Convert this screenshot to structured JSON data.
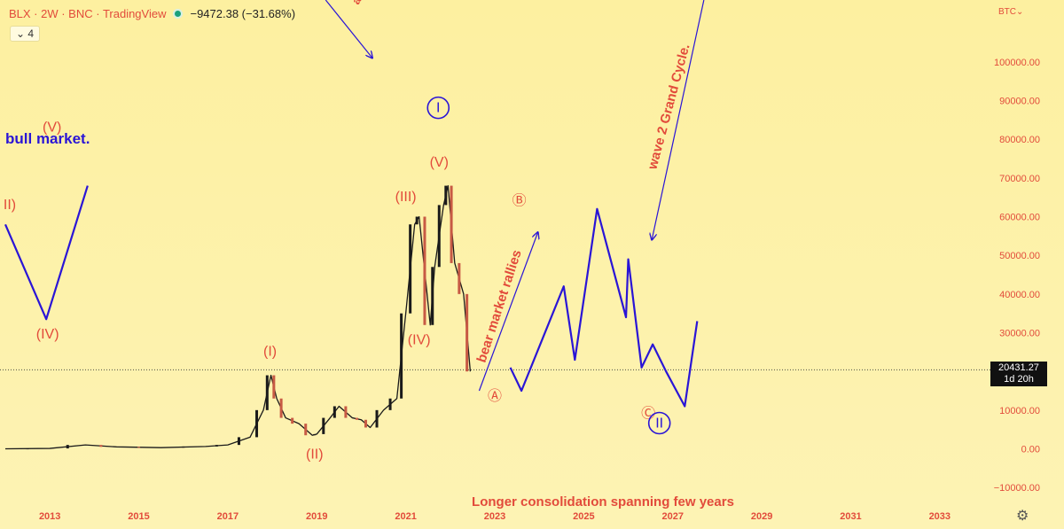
{
  "header": {
    "symbol_line": "BLX · 2W · BNC · TradingView",
    "change": "−9472.38 (−31.68%)",
    "status_color": "#1aa17b"
  },
  "interval_chip": {
    "icon": "chevron-down-icon",
    "label": "4"
  },
  "currency": "BTC",
  "settings_icon": "gear-icon",
  "last_price": {
    "value": "20431.27",
    "countdown": "1d 20h"
  },
  "colors": {
    "accent": "#e24b3b",
    "wave": "#2a15d6",
    "candle_up": "#1a1a1a",
    "candle_down": "#c75a44"
  },
  "chart_data": {
    "type": "line",
    "title": "",
    "xlabel": "",
    "ylabel": "",
    "xlim": [
      2012.0,
      2034.0
    ],
    "ylim": [
      -15000,
      116000
    ],
    "grid": false,
    "y_ticks": [
      "100000.00",
      "90000.00",
      "80000.00",
      "70000.00",
      "60000.00",
      "50000.00",
      "40000.00",
      "30000.00",
      "20000.00",
      "10000.00",
      "0.00",
      "−10000.00"
    ],
    "y_tick_values": [
      100000,
      90000,
      80000,
      70000,
      60000,
      50000,
      40000,
      30000,
      20000,
      10000,
      0,
      -10000
    ],
    "x_ticks": [
      "2013",
      "2015",
      "2017",
      "2019",
      "2021",
      "2023",
      "2025",
      "2027",
      "2029",
      "2031",
      "2033"
    ],
    "x_tick_values": [
      2013,
      2015,
      2017,
      2019,
      2021,
      2023,
      2025,
      2027,
      2029,
      2031,
      2033
    ],
    "price_line": 20431.27,
    "series": [
      {
        "kind": "price",
        "x": [
          2012.0,
          2013.0,
          2013.8,
          2014.5,
          2015.5,
          2016.5,
          2017.0,
          2017.5,
          2017.8,
          2017.97,
          2018.1,
          2018.3,
          2018.6,
          2018.9,
          2019.0,
          2019.3,
          2019.5,
          2019.8,
          2020.0,
          2020.2,
          2020.5,
          2020.8,
          2021.0,
          2021.2,
          2021.3,
          2021.55,
          2021.65,
          2021.85,
          2021.95,
          2022.1,
          2022.3,
          2022.45
        ],
        "y": [
          0,
          100,
          1000,
          500,
          300,
          600,
          1000,
          3000,
          10000,
          19000,
          13000,
          8000,
          6500,
          3500,
          3800,
          8000,
          11000,
          8000,
          7500,
          5500,
          10000,
          13000,
          35000,
          58000,
          60000,
          32000,
          47000,
          63000,
          68000,
          48000,
          40000,
          20000
        ]
      },
      {
        "kind": "projection-left",
        "x": [
          2012.0,
          2012.92,
          2013.85
        ],
        "y": [
          58000,
          33500,
          68000
        ]
      },
      {
        "kind": "projection-right",
        "x": [
          2023.35,
          2023.6,
          2024.55,
          2024.8,
          2025.3,
          2025.95,
          2026.0,
          2026.3,
          2026.55,
          2026.85,
          2027.27,
          2027.55
        ],
        "y": [
          21000,
          15000,
          42000,
          23000,
          62000,
          34000,
          49000,
          21000,
          27000,
          20000,
          11000,
          33000
        ]
      }
    ],
    "annotations": {
      "wave_labels": [
        {
          "text": "(V)",
          "x": 2013.05,
          "y": 82000
        },
        {
          "text": "II)",
          "x": 2012.1,
          "y": 62000
        },
        {
          "text": "(IV)",
          "x": 2012.95,
          "y": 28500
        },
        {
          "text": "(I)",
          "x": 2017.95,
          "y": 24000
        },
        {
          "text": "(II)",
          "x": 2018.95,
          "y": -2500
        },
        {
          "text": "(III)",
          "x": 2021.0,
          "y": 64000
        },
        {
          "text": "(IV)",
          "x": 2021.3,
          "y": 27000
        },
        {
          "text": "(V)",
          "x": 2021.75,
          "y": 73000
        },
        {
          "text": "Ⓐ",
          "x": 2023.0,
          "y": 12500
        },
        {
          "text": "Ⓑ",
          "x": 2023.55,
          "y": 63000
        },
        {
          "text": "Ⓒ",
          "x": 2026.45,
          "y": 8000
        }
      ],
      "circled_labels": [
        {
          "text": "I",
          "x": 2021.73,
          "y": 87000
        },
        {
          "text": "II",
          "x": 2026.7,
          "y": 5500
        }
      ],
      "bull_text": "bull market.",
      "bear_text": "bear market rallies",
      "grand_text": "wave 2 Grand Cycle.",
      "consolidation_text": "Longer consolidation spanning few years",
      "arrows": [
        {
          "x1": 2019.2,
          "y1": 116000,
          "x2": 2020.25,
          "y2": 101000
        },
        {
          "x1": 2022.65,
          "y1": 15000,
          "x2": 2023.97,
          "y2": 56000
        },
        {
          "x1": 2027.7,
          "y1": 116000,
          "x2": 2026.53,
          "y2": 54000
        }
      ]
    }
  }
}
